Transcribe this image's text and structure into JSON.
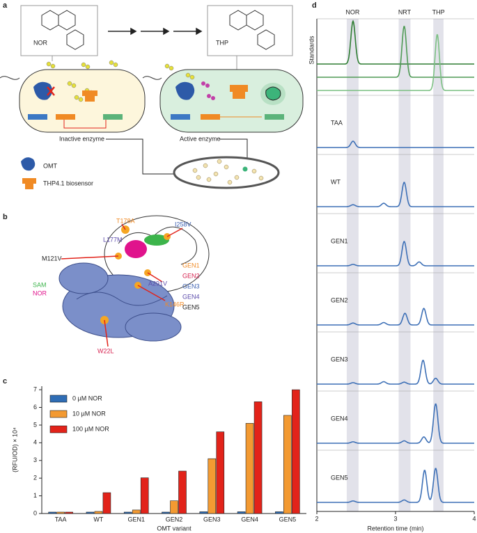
{
  "panel_a": {
    "label": "a",
    "molecule_left": "NOR",
    "molecule_right": "THP",
    "inactive": "Inactive enzyme",
    "active": "Active enzyme",
    "legend": [
      "OMT",
      "THP4.1 biosensor"
    ]
  },
  "panel_b": {
    "label": "b",
    "mutations": [
      {
        "text": "T178A",
        "color": "#f08a24"
      },
      {
        "text": "I258V",
        "color": "#3a5fb0"
      },
      {
        "text": "L177M",
        "color": "#5b4bab"
      },
      {
        "text": "M121V",
        "color": "#222222"
      },
      {
        "text": "A291V",
        "color": "#5b4bab"
      },
      {
        "text": "K146R",
        "color": "#f08a24"
      },
      {
        "text": "W22L",
        "color": "#d6204e"
      }
    ],
    "ligands": [
      {
        "text": "SAM",
        "color": "#3cb44b"
      },
      {
        "text": "NOR",
        "color": "#e0138c"
      }
    ],
    "variants": [
      {
        "text": "GEN1",
        "color": "#f08a24"
      },
      {
        "text": "GEN2",
        "color": "#d6204e"
      },
      {
        "text": "GEN3",
        "color": "#3a5fb0"
      },
      {
        "text": "GEN4",
        "color": "#5b4bab"
      },
      {
        "text": "GEN5",
        "color": "#222222"
      }
    ]
  },
  "chart_data": [
    {
      "type": "bar",
      "label": "c",
      "categories": [
        "TAA",
        "WT",
        "GEN1",
        "GEN2",
        "GEN3",
        "GEN4",
        "GEN5"
      ],
      "series": [
        {
          "name": "0 µM NOR",
          "color": "#2f6db5",
          "values": [
            0.08,
            0.08,
            0.08,
            0.08,
            0.1,
            0.1,
            0.1
          ]
        },
        {
          "name": "10 µM NOR",
          "color": "#f39a32",
          "values": [
            0.08,
            0.12,
            0.2,
            0.72,
            3.1,
            5.1,
            5.55
          ]
        },
        {
          "name": "100 µM NOR",
          "color": "#e2231a",
          "values": [
            0.08,
            1.18,
            2.02,
            2.4,
            4.62,
            6.32,
            7.0
          ]
        }
      ],
      "ylim": [
        0,
        7.2
      ],
      "yticks": [
        0,
        1,
        2,
        3,
        4,
        5,
        6,
        7
      ],
      "ylabel": "(RFU/OD) × 10⁴",
      "xlabel": "OMT variant",
      "legend": "upper-left"
    },
    {
      "type": "chromatogram",
      "label": "d",
      "xlim": [
        2,
        4
      ],
      "xticks": [
        2,
        3,
        4
      ],
      "xlabel": "Retention time (min)",
      "bands": [
        {
          "label": "NOR",
          "range": [
            2.38,
            2.53
          ]
        },
        {
          "label": "NRT",
          "range": [
            3.04,
            3.19
          ]
        },
        {
          "label": "THP",
          "range": [
            3.48,
            3.61
          ]
        }
      ],
      "panels": [
        {
          "name": "Standards",
          "traces": [
            {
              "color": "#2e7d32",
              "peaks": [
                {
                  "x": 2.46,
                  "height": 0.88
                }
              ]
            },
            {
              "color": "#4f9a55",
              "peaks": [
                {
                  "x": 3.11,
                  "height": 1.05
                }
              ]
            },
            {
              "color": "#7cc083",
              "peaks": [
                {
                  "x": 3.53,
                  "height": 1.15
                }
              ]
            }
          ]
        },
        {
          "name": "TAA",
          "traces": [
            {
              "color": "#3c6fb6",
              "peaks": [
                {
                  "x": 2.46,
                  "height": 0.13
                }
              ]
            }
          ]
        },
        {
          "name": "WT",
          "traces": [
            {
              "color": "#3c6fb6",
              "peaks": [
                {
                  "x": 2.46,
                  "height": 0.04
                },
                {
                  "x": 2.85,
                  "height": 0.07
                },
                {
                  "x": 3.11,
                  "height": 0.5
                }
              ]
            }
          ]
        },
        {
          "name": "GEN1",
          "traces": [
            {
              "color": "#3c6fb6",
              "peaks": [
                {
                  "x": 2.46,
                  "height": 0.03
                },
                {
                  "x": 3.11,
                  "height": 0.5
                },
                {
                  "x": 3.3,
                  "height": 0.08
                }
              ]
            }
          ]
        },
        {
          "name": "GEN2",
          "traces": [
            {
              "color": "#3c6fb6",
              "peaks": [
                {
                  "x": 2.46,
                  "height": 0.04
                },
                {
                  "x": 2.85,
                  "height": 0.05
                },
                {
                  "x": 3.12,
                  "height": 0.24
                },
                {
                  "x": 3.36,
                  "height": 0.34
                }
              ]
            }
          ]
        },
        {
          "name": "GEN3",
          "traces": [
            {
              "color": "#3c6fb6",
              "peaks": [
                {
                  "x": 2.46,
                  "height": 0.03
                },
                {
                  "x": 2.85,
                  "height": 0.05
                },
                {
                  "x": 3.11,
                  "height": 0.04
                },
                {
                  "x": 3.35,
                  "height": 0.49
                },
                {
                  "x": 3.51,
                  "height": 0.12
                }
              ]
            }
          ]
        },
        {
          "name": "GEN4",
          "traces": [
            {
              "color": "#3c6fb6",
              "peaks": [
                {
                  "x": 2.46,
                  "height": 0.03
                },
                {
                  "x": 3.11,
                  "height": 0.05
                },
                {
                  "x": 3.36,
                  "height": 0.13
                },
                {
                  "x": 3.51,
                  "height": 0.81
                }
              ]
            }
          ]
        },
        {
          "name": "GEN5",
          "traces": [
            {
              "color": "#3c6fb6",
              "peaks": [
                {
                  "x": 2.46,
                  "height": 0.03
                },
                {
                  "x": 3.11,
                  "height": 0.05
                },
                {
                  "x": 3.37,
                  "height": 0.66
                },
                {
                  "x": 3.51,
                  "height": 0.7
                }
              ]
            }
          ]
        }
      ]
    }
  ]
}
